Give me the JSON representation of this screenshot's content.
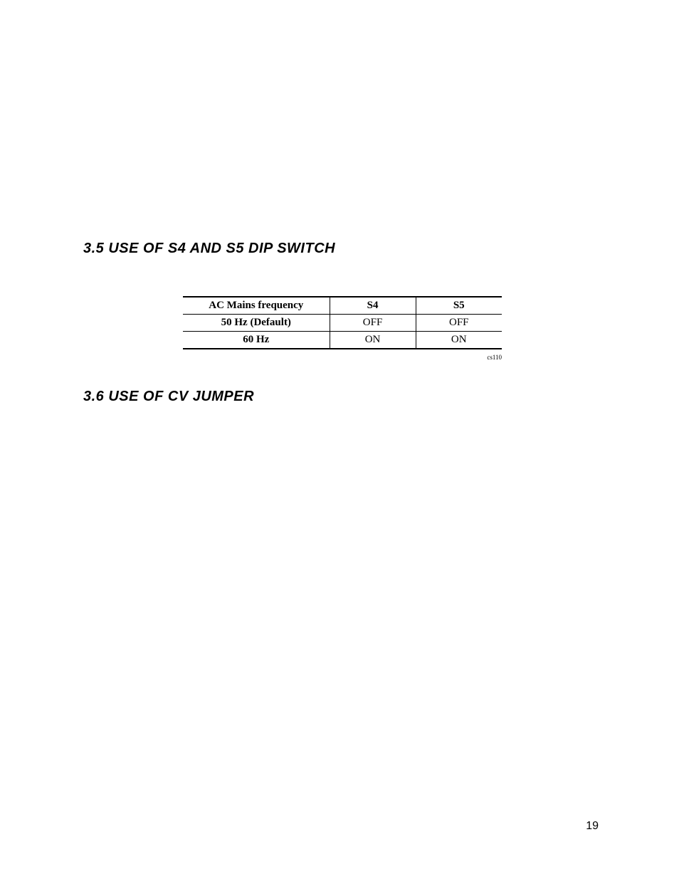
{
  "headings": {
    "h35": "3.5 USE OF S4 AND S5 DIP SWITCH",
    "h36": "3.6 USE OF CV JUMPER"
  },
  "dip_switch_table": {
    "columns": [
      "AC Mains frequency",
      "S4",
      "S5"
    ],
    "rows": [
      {
        "label": "50 Hz (Default)",
        "s4": "OFF",
        "s5": "OFF"
      },
      {
        "label": "60 Hz",
        "s4": "ON",
        "s5": "ON"
      }
    ],
    "caption": "cs110",
    "column_widths_pct": [
      46,
      27,
      27
    ],
    "border_color": "#000000",
    "header_fontweight": 700,
    "body_fontsize_pt": 11,
    "top_rule_weight": 2,
    "bottom_rule_weight": 2,
    "inner_rule_weight": 1
  },
  "page_number": "19",
  "colors": {
    "background": "#ffffff",
    "text": "#000000"
  },
  "typography": {
    "heading_font": "Arial Narrow Italic Bold",
    "heading_fontsize_pt": 15,
    "body_font": "Times New Roman",
    "pagenum_font": "Arial",
    "pagenum_fontsize_pt": 12
  }
}
